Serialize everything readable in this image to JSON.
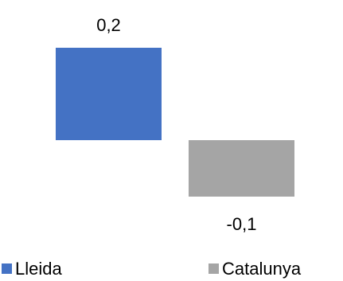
{
  "chart_data": {
    "type": "bar",
    "categories": [
      null
    ],
    "series": [
      {
        "name": "Lleida",
        "color": "#4472c4",
        "values": [
          0.18
        ],
        "value_labels": [
          "0,2"
        ]
      },
      {
        "name": "Catalunya",
        "color": "#a5a5a5",
        "values": [
          -0.11
        ],
        "value_labels": [
          "-0,1"
        ]
      }
    ],
    "legend": "bottom"
  }
}
